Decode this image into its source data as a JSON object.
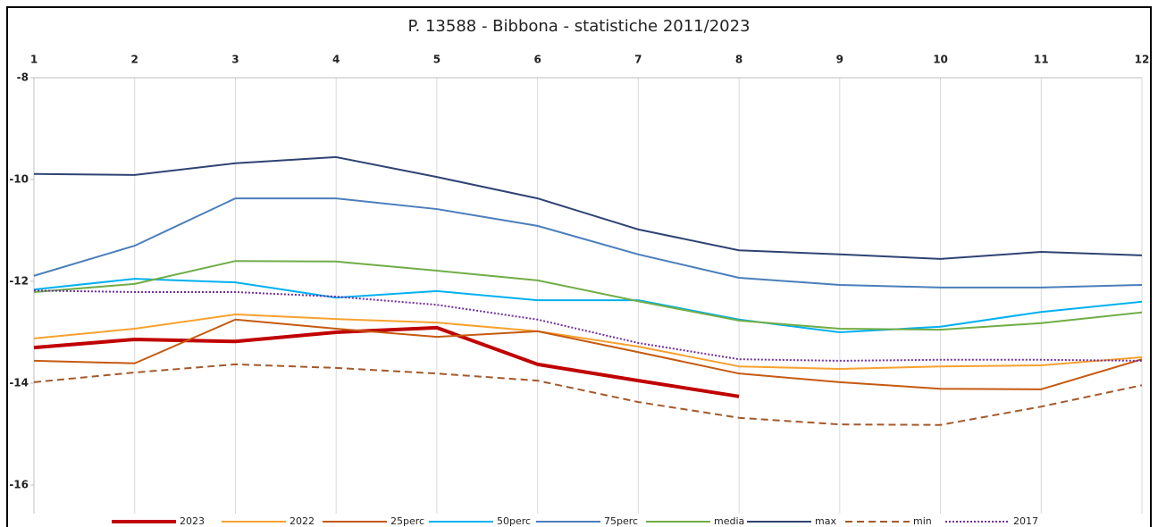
{
  "chart_data": {
    "type": "line",
    "title": "P. 13588 - Bibbona - statistiche 2011/2023",
    "x": [
      1,
      2,
      3,
      4,
      5,
      6,
      7,
      8,
      9,
      10,
      11,
      12
    ],
    "xlim": [
      1,
      12
    ],
    "xticks": [
      1,
      2,
      3,
      4,
      5,
      6,
      7,
      8,
      9,
      10,
      11,
      12
    ],
    "ylim": [
      -16,
      -8
    ],
    "yticks": [
      -8,
      -10,
      -12,
      -14,
      -16
    ],
    "grid": "x",
    "legend": "bottom",
    "series": [
      {
        "name": "2023",
        "color": "#c00000",
        "width": 4,
        "style": "solid",
        "values": [
          -13.3,
          -13.14,
          -13.18,
          -13.0,
          -12.91,
          -13.63,
          -13.95,
          -14.26,
          null,
          null,
          null,
          null
        ]
      },
      {
        "name": "2022",
        "color": "#f7a12f",
        "width": 2,
        "style": "solid",
        "values": [
          -13.12,
          -12.93,
          -12.65,
          -12.74,
          -12.81,
          -12.98,
          -13.28,
          -13.67,
          -13.72,
          -13.67,
          -13.65,
          -13.49
        ]
      },
      {
        "name": "25perc",
        "color": "#c55a11",
        "width": 2,
        "style": "solid",
        "values": [
          -13.56,
          -13.61,
          -12.75,
          -12.93,
          -13.09,
          -12.98,
          -13.39,
          -13.81,
          -13.98,
          -14.11,
          -14.12,
          -13.53
        ]
      },
      {
        "name": "50perc",
        "color": "#00b0f0",
        "width": 2,
        "style": "solid",
        "values": [
          -12.16,
          -11.95,
          -12.02,
          -12.32,
          -12.19,
          -12.37,
          -12.37,
          -12.75,
          -13.0,
          -12.89,
          -12.6,
          -12.4
        ]
      },
      {
        "name": "75perc",
        "color": "#4a7ebb",
        "width": 2,
        "style": "solid",
        "values": [
          -11.89,
          -11.3,
          -10.37,
          -10.37,
          -10.58,
          -10.91,
          -11.47,
          -11.93,
          -12.07,
          -12.12,
          -12.12,
          -12.07
        ]
      },
      {
        "name": "media",
        "color": "#70ad47",
        "width": 2,
        "style": "solid",
        "values": [
          -12.21,
          -12.05,
          -11.6,
          -11.61,
          -11.79,
          -11.98,
          -12.39,
          -12.77,
          -12.93,
          -12.95,
          -12.82,
          -12.61
        ]
      },
      {
        "name": "max",
        "color": "#2f4373",
        "width": 2,
        "style": "solid",
        "values": [
          -9.89,
          -9.91,
          -9.68,
          -9.56,
          -9.95,
          -10.37,
          -10.98,
          -11.39,
          -11.47,
          -11.56,
          -11.42,
          -11.49
        ]
      },
      {
        "name": "min",
        "color": "#a5582a",
        "width": 2,
        "style": "dashed",
        "values": [
          -13.98,
          -13.79,
          -13.63,
          -13.7,
          -13.81,
          -13.95,
          -14.37,
          -14.68,
          -14.81,
          -14.82,
          -14.46,
          -14.04
        ]
      },
      {
        "name": "2017",
        "color": "#7030a0",
        "width": 2,
        "style": "dotted",
        "values": [
          -12.18,
          -12.21,
          -12.21,
          -12.3,
          -12.46,
          -12.75,
          -13.21,
          -13.53,
          -13.56,
          -13.54,
          -13.54,
          -13.56
        ]
      }
    ]
  }
}
